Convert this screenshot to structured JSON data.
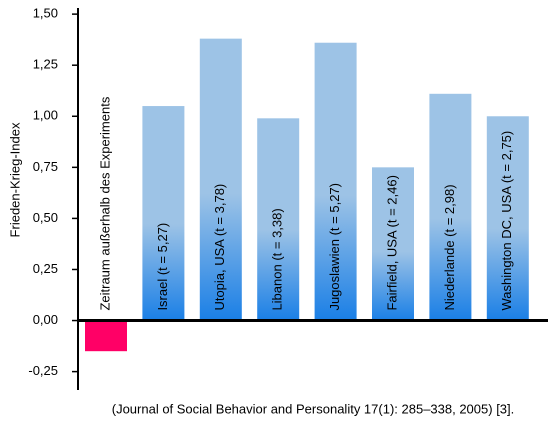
{
  "chart_data": {
    "type": "bar",
    "y_label": "Frieden-Krieg-Index",
    "source": "(Journal of Social Behavior and Personality 17(1): 285–338, 2005) [3].",
    "categories": [
      "Zeitraum außerhalb des Experiments",
      "Israel (t = 5,27)",
      "Utopia, USA (t = 3,78)",
      "Libanon (t = 3,38)",
      "Jugoslawien (t = 5,27)",
      "Fairfield, USA (t = 2,46)",
      "Niederlande (t = 2,98)",
      "Washington DC, USA (t = 2,75)"
    ],
    "values": [
      -0.15,
      1.05,
      1.38,
      0.99,
      1.36,
      0.75,
      1.11,
      1.0
    ],
    "gradient": [
      "#9dc3e6",
      "#1a7fe6"
    ],
    "negative_color": "#ff0066",
    "ylim": [
      -0.34,
      1.53
    ],
    "yticks": [
      {
        "value": -0.25,
        "label": "-0,25"
      },
      {
        "value": 0,
        "label": "0,00"
      },
      {
        "value": 0.25,
        "label": "0,25"
      },
      {
        "value": 0.5,
        "label": "0,50"
      },
      {
        "value": 0.75,
        "label": "0,75"
      },
      {
        "value": 1,
        "label": "1,00"
      },
      {
        "value": 1.25,
        "label": "1,25"
      },
      {
        "value": 1.5,
        "label": "1,50"
      }
    ]
  }
}
